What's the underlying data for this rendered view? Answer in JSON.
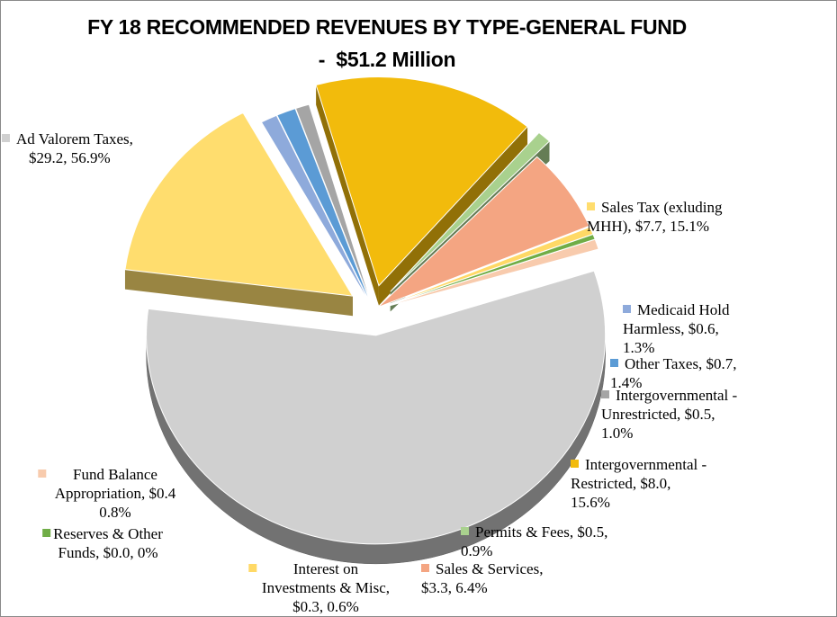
{
  "chart_data": {
    "type": "pie",
    "title": "FY 18 RECOMMENDED REVENUES BY TYPE-GENERAL FUND",
    "subtitle": "-  $51.2 Million",
    "slices": [
      {
        "name": "Ad Valorem Taxes",
        "value": 29.2,
        "percent": 56.9,
        "color": "#d0d0d0",
        "exploded": true,
        "label_lines": [
          "Ad Valorem Taxes,",
          "$29.2, 56.9%"
        ]
      },
      {
        "name": "Sales Tax (exluding MHH)",
        "value": 7.7,
        "percent": 15.1,
        "color": "#ffdd6e",
        "exploded": true,
        "label_lines": [
          "Sales Tax (exluding",
          "MHH), $7.7, 15.1%"
        ]
      },
      {
        "name": "Medicaid Hold Harmless",
        "value": 0.6,
        "percent": 1.3,
        "color": "#8eaadb",
        "exploded": false,
        "label_lines": [
          "Medicaid Hold",
          "Harmless, $0.6,",
          "1.3%"
        ]
      },
      {
        "name": "Other Taxes",
        "value": 0.7,
        "percent": 1.4,
        "color": "#5b9bd5",
        "exploded": false,
        "label_lines": [
          "Other Taxes, $0.7,",
          "1.4%"
        ]
      },
      {
        "name": "Intergovernmental - Unrestricted",
        "value": 0.5,
        "percent": 1.0,
        "color": "#a5a5a5",
        "exploded": false,
        "label_lines": [
          "Intergovernmental -",
          "Unrestricted, $0.5,",
          "1.0%"
        ]
      },
      {
        "name": "Intergovernmental - Restricted",
        "value": 8.0,
        "percent": 15.6,
        "color": "#f2bb0c",
        "exploded": true,
        "label_lines": [
          "Intergovernmental -",
          "Restricted, $8.0,",
          "15.6%"
        ]
      },
      {
        "name": "Permits & Fees",
        "value": 0.5,
        "percent": 0.9,
        "color": "#a9d18e",
        "exploded": true,
        "label_lines": [
          "Permits & Fees, $0.5,",
          "0.9%"
        ]
      },
      {
        "name": "Sales & Services",
        "value": 3.3,
        "percent": 6.4,
        "color": "#f4a582",
        "exploded": false,
        "label_lines": [
          "Sales & Services,",
          "$3.3, 6.4%"
        ]
      },
      {
        "name": "Interest on Investments & Misc",
        "value": 0.3,
        "percent": 0.6,
        "color": "#ffd966",
        "exploded": false,
        "label_lines": [
          "Interest on",
          "Investments & Misc,",
          "$0.3, 0.6%"
        ]
      },
      {
        "name": "Reserves & Other Funds",
        "value": 0.0,
        "percent": 0,
        "color": "#70ad47",
        "exploded": false,
        "label_lines": [
          "Reserves & Other",
          "Funds, $0.0, 0%"
        ]
      },
      {
        "name": "Fund Balance Appropriation",
        "value": 0.4,
        "percent": 0.8,
        "color": "#f8cbad",
        "exploded": false,
        "label_lines": [
          "Fund Balance",
          "Appropriation, $0.4",
          "0.8%"
        ]
      }
    ],
    "legend": "labels beside slices with colored square markers"
  }
}
